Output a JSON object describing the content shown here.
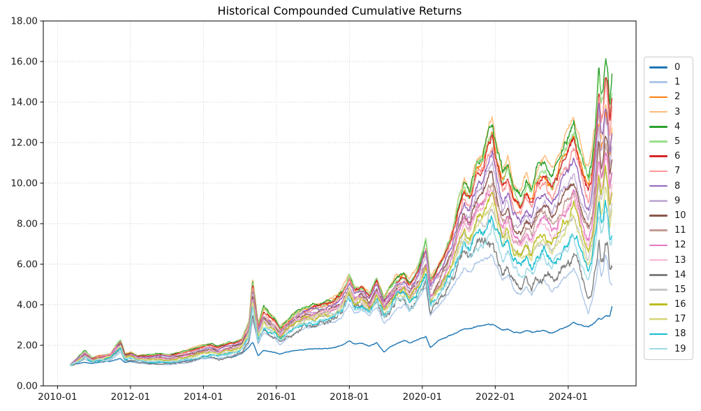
{
  "chart_data": {
    "type": "line",
    "title": "Historical Compounded Cumulative Returns",
    "xlabel": "",
    "ylabel": "",
    "xlim": [
      2009.61,
      2025.86
    ],
    "ylim": [
      0,
      18
    ],
    "grid": true,
    "grid_style": "dotted",
    "legend_position": "right-outside",
    "x_ticks": [
      {
        "value": 2010,
        "label": "2010-01"
      },
      {
        "value": 2012,
        "label": "2012-01"
      },
      {
        "value": 2014,
        "label": "2014-01"
      },
      {
        "value": 2016,
        "label": "2016-01"
      },
      {
        "value": 2018,
        "label": "2018-01"
      },
      {
        "value": 2020,
        "label": "2020-01"
      },
      {
        "value": 2022,
        "label": "2022-01"
      },
      {
        "value": 2024,
        "label": "2024-01"
      }
    ],
    "y_ticks": [
      {
        "value": 0,
        "label": "0.00"
      },
      {
        "value": 2,
        "label": "2.00"
      },
      {
        "value": 4,
        "label": "4.00"
      },
      {
        "value": 6,
        "label": "6.00"
      },
      {
        "value": 8,
        "label": "8.00"
      },
      {
        "value": 10,
        "label": "10.00"
      },
      {
        "value": 12,
        "label": "12.00"
      },
      {
        "value": 14,
        "label": "14.00"
      },
      {
        "value": 16,
        "label": "16.00"
      },
      {
        "value": 18,
        "label": "18.00"
      }
    ],
    "x": [
      2010.35,
      2010.55,
      2010.75,
      2010.95,
      2011.15,
      2011.45,
      2011.65,
      2011.73,
      2011.85,
      2012.0,
      2012.2,
      2012.5,
      2012.8,
      2013.1,
      2013.4,
      2013.7,
      2013.95,
      2014.2,
      2014.4,
      2014.6,
      2014.85,
      2015.05,
      2015.25,
      2015.35,
      2015.5,
      2015.65,
      2015.8,
      2015.95,
      2016.1,
      2016.3,
      2016.55,
      2016.8,
      2017.05,
      2017.3,
      2017.55,
      2017.8,
      2018.0,
      2018.15,
      2018.35,
      2018.55,
      2018.75,
      2018.95,
      2019.1,
      2019.3,
      2019.5,
      2019.65,
      2019.8,
      2019.95,
      2020.1,
      2020.22,
      2020.4,
      2020.6,
      2020.8,
      2021.0,
      2021.15,
      2021.3,
      2021.5,
      2021.65,
      2021.8,
      2021.92,
      2022.05,
      2022.2,
      2022.35,
      2022.5,
      2022.7,
      2022.85,
      2023.0,
      2023.15,
      2023.35,
      2023.55,
      2023.7,
      2023.85,
      2024.0,
      2024.15,
      2024.3,
      2024.45,
      2024.55,
      2024.65,
      2024.75,
      2024.84,
      2024.9,
      2024.96,
      2025.02,
      2025.08,
      2025.14,
      2025.2
    ],
    "envelope_top": [
      1.05,
      1.38,
      1.72,
      1.38,
      1.48,
      1.58,
      2.1,
      2.25,
      1.58,
      1.66,
      1.5,
      1.55,
      1.6,
      1.56,
      1.7,
      1.86,
      2.0,
      2.1,
      1.96,
      2.1,
      2.2,
      2.36,
      3.2,
      5.3,
      3.0,
      3.9,
      3.6,
      3.4,
      2.9,
      3.3,
      3.7,
      3.9,
      4.05,
      4.1,
      4.3,
      4.7,
      5.5,
      4.9,
      5.0,
      4.6,
      5.4,
      4.4,
      4.9,
      5.5,
      5.6,
      5.2,
      5.6,
      6.3,
      7.2,
      5.4,
      5.9,
      6.6,
      7.6,
      9.4,
      10.3,
      9.8,
      11.3,
      11.5,
      12.6,
      13.3,
      11.9,
      10.6,
      11.3,
      9.9,
      9.6,
      10.4,
      9.8,
      10.9,
      11.3,
      10.6,
      11.2,
      12.0,
      12.6,
      13.3,
      12.1,
      11.2,
      10.8,
      11.6,
      13.5,
      16.4,
      14.8,
      15.4,
      16.9,
      16.2,
      14.2,
      15.8
    ],
    "envelope_bottom": [
      1.0,
      1.14,
      1.3,
      1.14,
      1.2,
      1.24,
      1.58,
      1.68,
      1.22,
      1.26,
      1.12,
      1.06,
      1.06,
      1.01,
      1.09,
      1.19,
      1.29,
      1.39,
      1.29,
      1.39,
      1.49,
      1.6,
      2.1,
      3.3,
      2.0,
      2.6,
      2.4,
      2.3,
      2.0,
      2.3,
      2.6,
      2.8,
      2.9,
      3.0,
      3.1,
      3.4,
      4.1,
      3.6,
      3.7,
      3.3,
      3.9,
      3.1,
      3.4,
      3.9,
      4.0,
      3.6,
      3.9,
      4.3,
      4.8,
      3.3,
      3.8,
      4.2,
      4.8,
      5.4,
      5.8,
      5.5,
      6.0,
      6.0,
      6.2,
      6.3,
      5.7,
      5.1,
      5.4,
      4.7,
      4.3,
      4.7,
      4.3,
      4.8,
      5.0,
      4.5,
      4.8,
      5.1,
      5.3,
      5.6,
      4.9,
      4.0,
      3.4,
      4.0,
      4.9,
      6.0,
      5.2,
      5.4,
      6.1,
      5.7,
      4.7,
      4.6
    ],
    "series": [
      {
        "name": "0",
        "color": "#1f77b4",
        "values": [
          1.02,
          1.08,
          1.16,
          1.1,
          1.15,
          1.21,
          1.3,
          1.34,
          1.16,
          1.2,
          1.13,
          1.12,
          1.15,
          1.15,
          1.2,
          1.28,
          1.33,
          1.38,
          1.33,
          1.38,
          1.45,
          1.6,
          1.9,
          2.15,
          1.5,
          1.75,
          1.7,
          1.65,
          1.58,
          1.68,
          1.73,
          1.78,
          1.8,
          1.85,
          1.9,
          2.0,
          2.2,
          2.05,
          2.1,
          1.95,
          2.1,
          1.7,
          1.9,
          2.1,
          2.25,
          2.1,
          2.25,
          2.35,
          2.45,
          1.88,
          2.2,
          2.35,
          2.5,
          2.7,
          2.8,
          2.8,
          2.95,
          2.95,
          3.0,
          3.0,
          2.9,
          2.75,
          2.8,
          2.65,
          2.6,
          2.7,
          2.6,
          2.65,
          2.7,
          2.6,
          2.7,
          2.8,
          2.95,
          3.1,
          3.0,
          2.95,
          2.9,
          3.0,
          3.1,
          3.3,
          3.25,
          3.35,
          3.45,
          3.45,
          3.4,
          3.9
        ]
      },
      {
        "name": "1",
        "color": "#aec7e8",
        "fraction": 0.03
      },
      {
        "name": "2",
        "color": "#ff7f0e",
        "fraction": 0.88,
        "end_scale": 0.86
      },
      {
        "name": "3",
        "color": "#ffbb78",
        "fraction": 1.0,
        "end_scale": 0.82
      },
      {
        "name": "4",
        "color": "#2ca02c",
        "fraction": 0.95
      },
      {
        "name": "5",
        "color": "#98df8a",
        "fraction": 0.91
      },
      {
        "name": "6",
        "color": "#d62728",
        "fraction": 0.85
      },
      {
        "name": "7",
        "color": "#ff9896",
        "fraction": 0.79
      },
      {
        "name": "8",
        "color": "#9467bd",
        "fraction": 0.73
      },
      {
        "name": "9",
        "color": "#c5b0d5",
        "fraction": 0.64
      },
      {
        "name": "10",
        "color": "#8c564b",
        "fraction": 0.6
      },
      {
        "name": "11",
        "color": "#c49c94",
        "fraction": 0.56
      },
      {
        "name": "12",
        "color": "#e377c2",
        "fraction": 0.52
      },
      {
        "name": "13",
        "color": "#f7b6d2",
        "fraction": 0.48
      },
      {
        "name": "14",
        "color": "#7f7f7f",
        "fraction": 0.12
      },
      {
        "name": "15",
        "color": "#c7c7c7",
        "fraction": 0.39
      },
      {
        "name": "16",
        "color": "#bcbd22",
        "fraction": 0.43
      },
      {
        "name": "17",
        "color": "#dbdb8d",
        "fraction": 0.35
      },
      {
        "name": "18",
        "color": "#17becf",
        "fraction": 0.28
      },
      {
        "name": "19",
        "color": "#9edae5",
        "fraction": 0.22
      }
    ]
  }
}
